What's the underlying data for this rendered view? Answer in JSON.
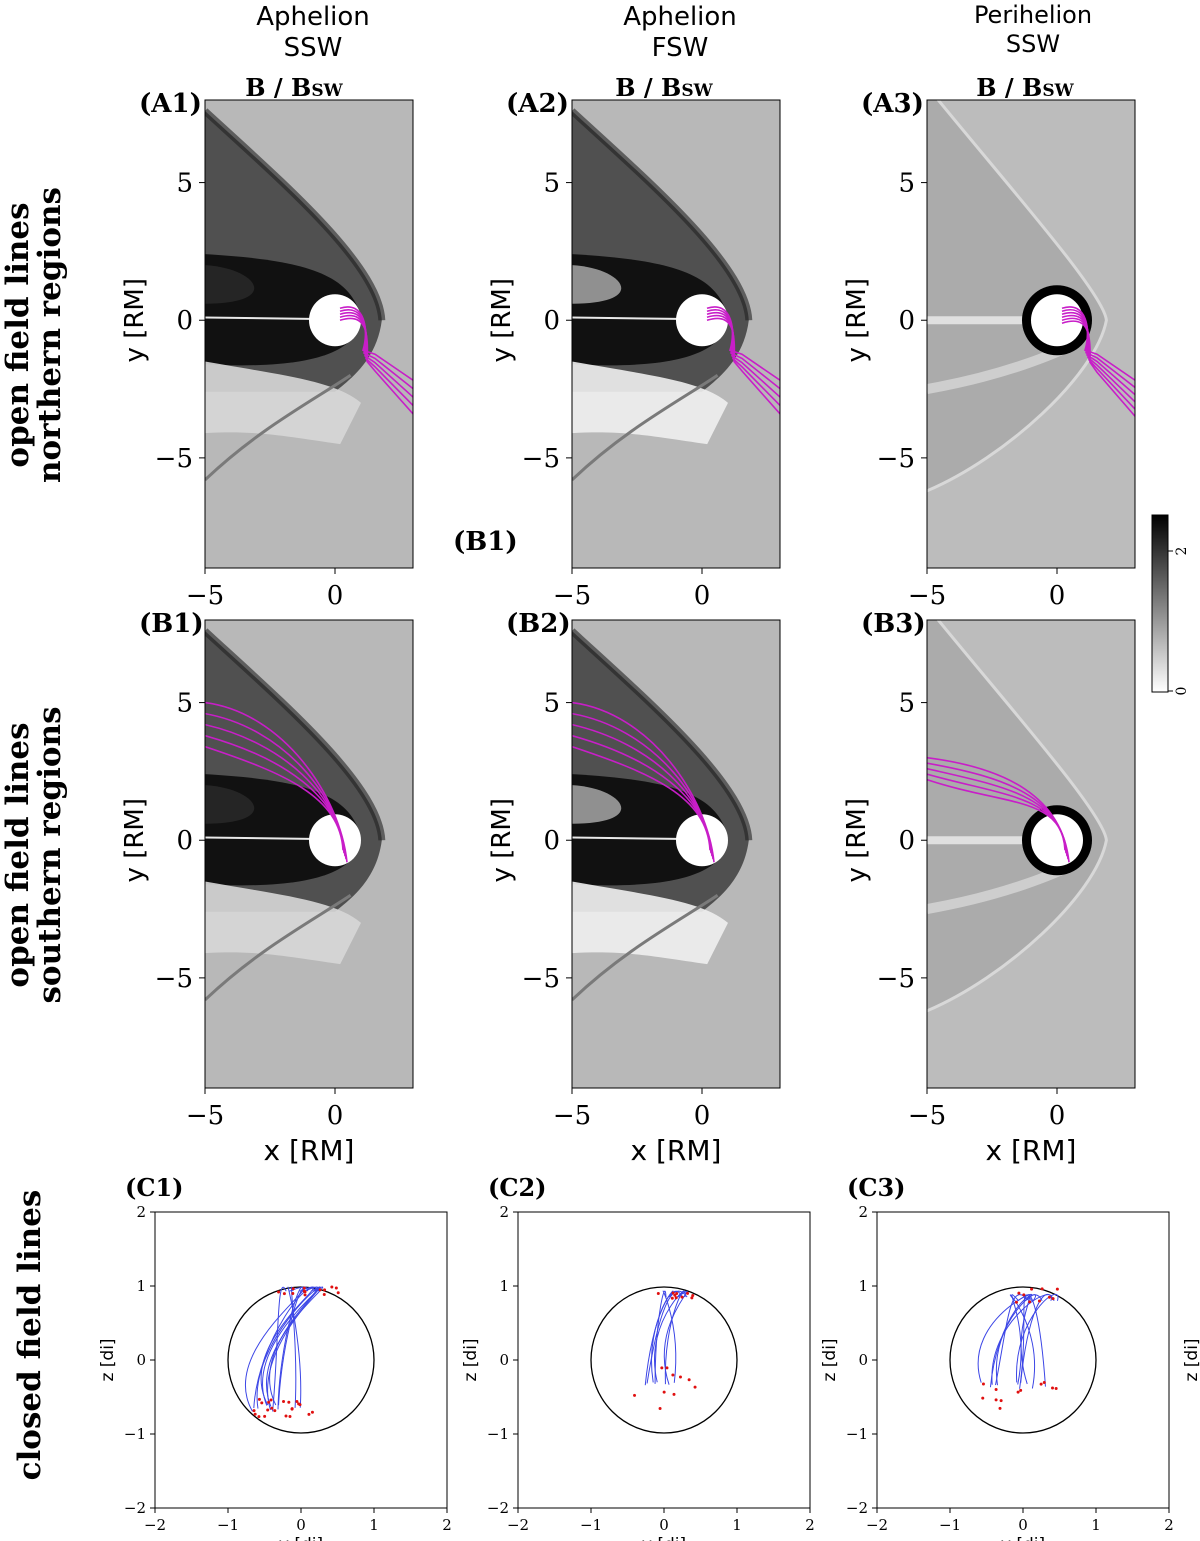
{
  "columns": [
    {
      "line1": "Aphelion",
      "line2": "SSW"
    },
    {
      "line1": "Aphelion",
      "line2": "FSW"
    },
    {
      "line1": "Perihelion",
      "line2": "SSW"
    }
  ],
  "field_label": {
    "main": "B / B",
    "sub": "SW"
  },
  "rows": [
    {
      "line1": "open field lines",
      "line2": "northern regions"
    },
    {
      "line1": "open field lines",
      "line2": "southern regions"
    },
    {
      "line1": "closed field lines",
      "line2": ""
    }
  ],
  "panel_labels": {
    "A": [
      "(A1)",
      "(A2)",
      "(A3)"
    ],
    "B": [
      "(B1)",
      "(B2)",
      "(B3)"
    ],
    "C": [
      "(C1)",
      "(C2)",
      "(C3)"
    ],
    "stray": "(B1)"
  },
  "axes": {
    "map_ylabel": "y [RM]",
    "map_xlabel": "x [RM]",
    "map_xticks": [
      "−5",
      "0"
    ],
    "map_yticks": [
      "5",
      "0",
      "−5"
    ],
    "c_ylabel": "z [di]",
    "c_xlabel": "y [di]",
    "c_xticks": [
      "−2",
      "−1",
      "0",
      "1",
      "2"
    ],
    "c_yticks": [
      "2",
      "1",
      "0",
      "−1",
      "−2"
    ]
  },
  "colorbar": {
    "min_label": "0",
    "max_label": "2"
  },
  "colors": {
    "open_line": "#c81ec8",
    "closed_line": "#3c46e6",
    "footpoint": "#e01010",
    "frame": "#000000"
  },
  "chart_data": [
    {
      "type": "heatmap",
      "panel": "A1",
      "quantity": "B / Bsw",
      "x_range_RM": [
        -5,
        3
      ],
      "y_range_RM": [
        -9,
        8
      ],
      "colorbar_range": [
        0,
        2.5
      ],
      "colorbar_ticks": [
        0,
        2
      ]
    },
    {
      "type": "heatmap",
      "panel": "A2",
      "quantity": "B / Bsw",
      "x_range_RM": [
        -5,
        3
      ],
      "y_range_RM": [
        -9,
        8
      ]
    },
    {
      "type": "heatmap",
      "panel": "A3",
      "quantity": "B / Bsw",
      "x_range_RM": [
        -5,
        3
      ],
      "y_range_RM": [
        -9,
        8
      ]
    },
    {
      "type": "heatmap",
      "panel": "B1",
      "quantity": "B / Bsw",
      "x_range_RM": [
        -5,
        3
      ],
      "y_range_RM": [
        -9,
        8
      ]
    },
    {
      "type": "heatmap",
      "panel": "B2",
      "quantity": "B / Bsw",
      "x_range_RM": [
        -5,
        3
      ],
      "y_range_RM": [
        -9,
        8
      ]
    },
    {
      "type": "heatmap",
      "panel": "B3",
      "quantity": "B / Bsw",
      "x_range_RM": [
        -5,
        3
      ],
      "y_range_RM": [
        -9,
        8
      ]
    },
    {
      "type": "line",
      "panel": "C1",
      "xlabel": "y [di]",
      "ylabel": "z [di]",
      "xlim": [
        -2,
        2
      ],
      "ylim": [
        -2,
        2
      ],
      "circle_radius": 1
    },
    {
      "type": "line",
      "panel": "C2",
      "xlabel": "y [di]",
      "ylabel": "z [di]",
      "xlim": [
        -2,
        2
      ],
      "ylim": [
        -2,
        2
      ],
      "circle_radius": 1
    },
    {
      "type": "line",
      "panel": "C3",
      "xlabel": "y [di]",
      "ylabel": "z [di]",
      "xlim": [
        -2,
        2
      ],
      "ylim": [
        -2,
        2
      ],
      "circle_radius": 1
    }
  ]
}
